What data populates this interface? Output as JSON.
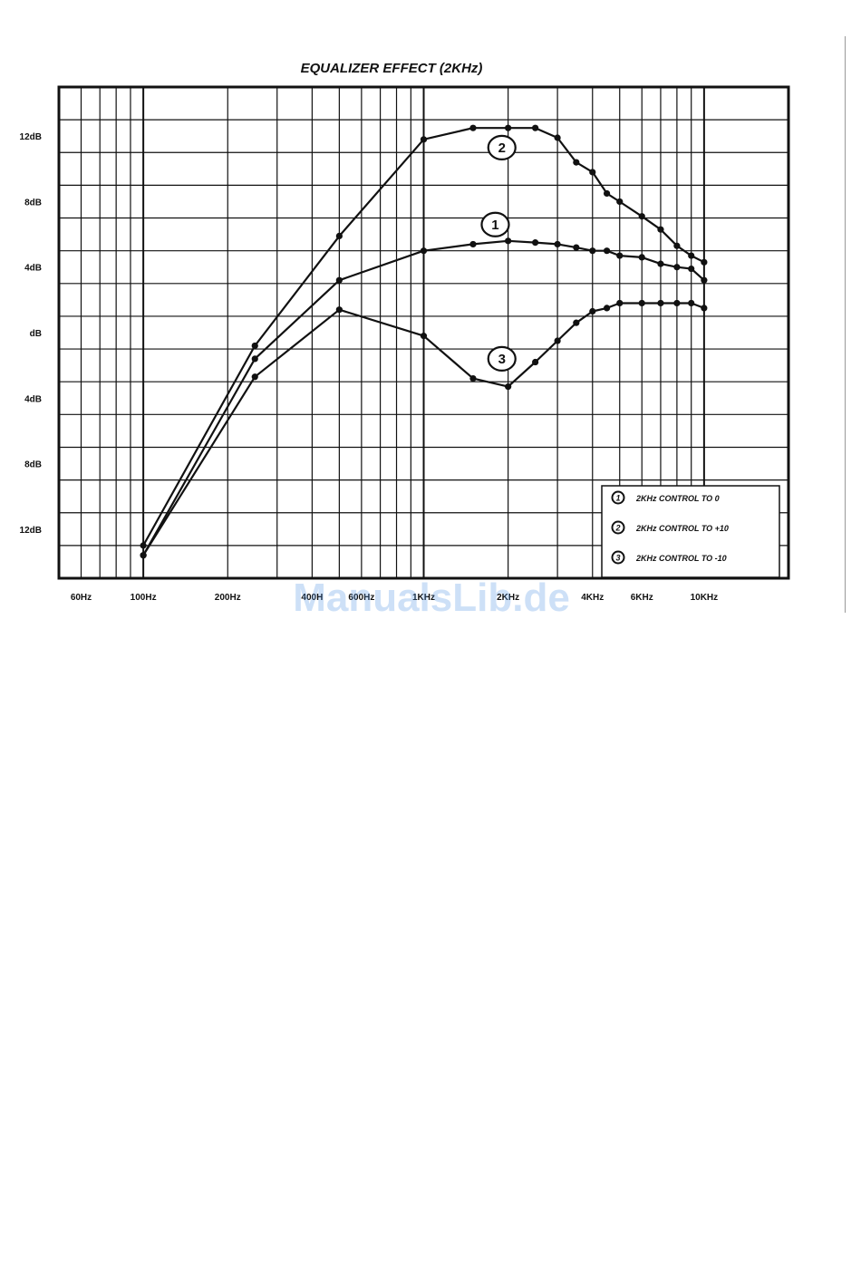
{
  "chart_data": {
    "type": "line",
    "title": "EQUALIZER EFFECT (2KHz)",
    "xlabel": "",
    "ylabel": "",
    "x_scale": "log",
    "xlim": [
      50,
      20000
    ],
    "ylim": [
      -15,
      15
    ],
    "grid": true,
    "y_ticks": [
      {
        "value": 12,
        "label": "12dB"
      },
      {
        "value": 8,
        "label": "8dB"
      },
      {
        "value": 4,
        "label": "4dB"
      },
      {
        "value": 0,
        "label": "dB"
      },
      {
        "value": -4,
        "label": "4dB"
      },
      {
        "value": -8,
        "label": "8dB"
      },
      {
        "value": -12,
        "label": "12dB"
      }
    ],
    "x_ticks": [
      {
        "value": 60,
        "label": "60Hz"
      },
      {
        "value": 100,
        "label": "100Hz"
      },
      {
        "value": 200,
        "label": "200Hz"
      },
      {
        "value": 400,
        "label": "400H"
      },
      {
        "value": 600,
        "label": "600Hz"
      },
      {
        "value": 1000,
        "label": "1KHz"
      },
      {
        "value": 2000,
        "label": "2KHz"
      },
      {
        "value": 4000,
        "label": "4KHz"
      },
      {
        "value": 6000,
        "label": "6KHz"
      },
      {
        "value": 10000,
        "label": "10KHz"
      }
    ],
    "series": [
      {
        "name": "2KHz CONTROL TO 0",
        "marker": "1",
        "x": [
          100,
          250,
          500,
          1000,
          1500,
          2000,
          2500,
          3000,
          3500,
          4000,
          4500,
          5000,
          6000,
          7000,
          8000,
          9000,
          10000
        ],
        "y": [
          -13.6,
          -1.6,
          3.2,
          5.0,
          5.4,
          5.6,
          5.5,
          5.4,
          5.2,
          5.0,
          5.0,
          4.7,
          4.6,
          4.2,
          4.0,
          3.9,
          3.2
        ]
      },
      {
        "name": "2KHz CONTROL TO +10",
        "marker": "2",
        "x": [
          100,
          250,
          500,
          1000,
          1500,
          2000,
          2500,
          3000,
          3500,
          4000,
          4500,
          5000,
          6000,
          7000,
          8000,
          9000,
          10000
        ],
        "y": [
          -13.0,
          -0.8,
          5.9,
          11.8,
          12.5,
          12.5,
          12.5,
          11.9,
          10.4,
          9.8,
          8.5,
          8.0,
          7.1,
          6.3,
          5.3,
          4.7,
          4.3
        ]
      },
      {
        "name": "2KHz CONTROL TO -10",
        "marker": "3",
        "x": [
          100,
          250,
          500,
          1000,
          1500,
          2000,
          2500,
          3000,
          3500,
          4000,
          4500,
          5000,
          6000,
          7000,
          8000,
          9000,
          10000
        ],
        "y": [
          -13.6,
          -2.7,
          1.4,
          -0.2,
          -2.8,
          -3.3,
          -1.8,
          -0.5,
          0.6,
          1.3,
          1.5,
          1.8,
          1.8,
          1.8,
          1.8,
          1.8,
          1.5
        ]
      }
    ],
    "callouts": [
      {
        "label": "2",
        "x": 1900,
        "y": 11.3
      },
      {
        "label": "1",
        "x": 1800,
        "y": 6.6
      },
      {
        "label": "3",
        "x": 1900,
        "y": -1.6
      }
    ],
    "legend": {
      "position": "bottom-right",
      "entries": [
        {
          "marker": "1",
          "text": "2KHz CONTROL TO 0"
        },
        {
          "marker": "2",
          "text": "2KHz CONTROL TO +10"
        },
        {
          "marker": "3",
          "text": "2KHz CONTROL TO -10"
        }
      ]
    }
  },
  "watermark": "ManualsLib.de"
}
